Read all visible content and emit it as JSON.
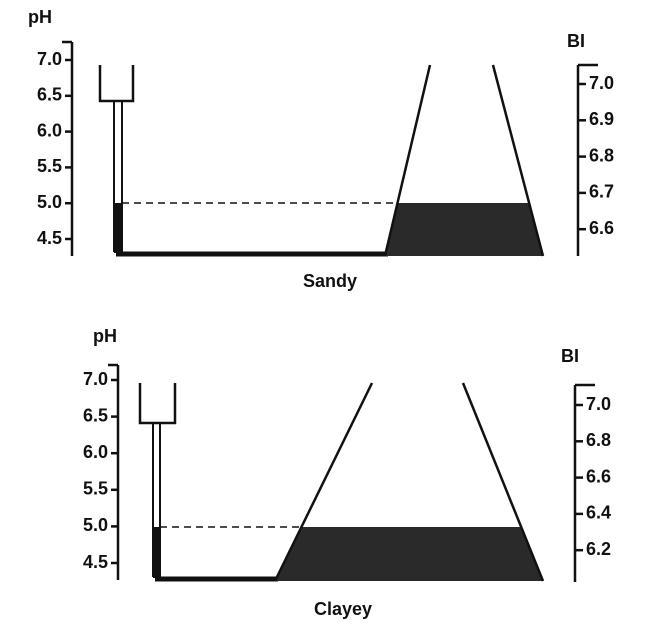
{
  "panels": [
    {
      "left_axis": {
        "label": "pH",
        "ticks": [
          "7.0",
          "6.5",
          "6.0",
          "5.5",
          "5.0",
          "4.5"
        ]
      },
      "right_axis": {
        "label": "BI",
        "ticks": [
          "7.0",
          "6.9",
          "6.8",
          "6.7",
          "6.6"
        ]
      },
      "label": "Sandy"
    },
    {
      "left_axis": {
        "label": "pH",
        "ticks": [
          "7.0",
          "6.5",
          "6.0",
          "5.5",
          "5.0",
          "4.5"
        ]
      },
      "right_axis": {
        "label": "BI",
        "ticks": [
          "7.0",
          "6.8",
          "6.6",
          "6.4",
          "6.2"
        ]
      },
      "label": "Clayey"
    }
  ]
}
